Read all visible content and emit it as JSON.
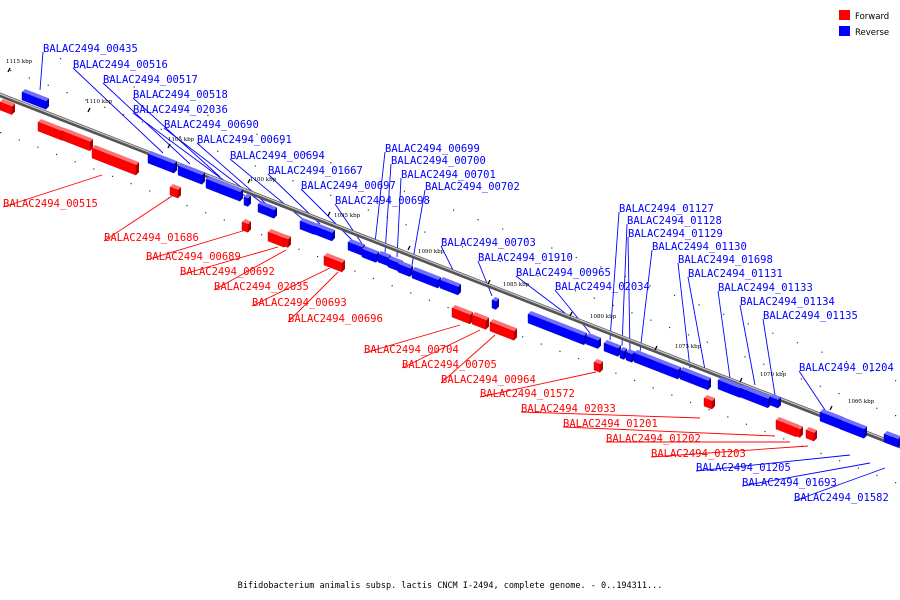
{
  "legend": {
    "forward_label": "Forward",
    "reverse_label": "Reverse",
    "forward_color": "#ff0000",
    "reverse_color": "#0000ff"
  },
  "caption": "Bifidobacterium animalis subsp. lactis CNCM I-2494, complete genome. - 0..194311...",
  "kbp_ticks": [
    "1115 kbp",
    "1110 kbp",
    "1105 kbp",
    "1100 kbp",
    "1095 kbp",
    "1090 kbp",
    "1085 kbp",
    "1080 kbp",
    "1075 kbp",
    "1070 kbp",
    "1065 kbp"
  ],
  "forward_labels": [
    "BALAC2494_00515",
    "BALAC2494_01686",
    "BALAC2494_00689",
    "BALAC2494_00692",
    "BALAC2494_02035",
    "BALAC2494_00693",
    "BALAC2494_00696",
    "BALAC2494_00704",
    "BALAC2494_00705",
    "BALAC2494_00964",
    "BALAC2494_01572",
    "BALAC2494_02033",
    "BALAC2494_01201",
    "BALAC2494_01202",
    "BALAC2494_01203"
  ],
  "reverse_labels": [
    "BALAC2494_00435",
    "BALAC2494_00516",
    "BALAC2494_00517",
    "BALAC2494_00518",
    "BALAC2494_02036",
    "BALAC2494_00690",
    "BALAC2494_00691",
    "BALAC2494_00694",
    "BALAC2494_01667",
    "BALAC2494_00697",
    "BALAC2494_00698",
    "BALAC2494_00699",
    "BALAC2494_00700",
    "BALAC2494_00701",
    "BALAC2494_00702",
    "BALAC2494_00703",
    "BALAC2494_01910",
    "BALAC2494_00965",
    "BALAC2494_02034",
    "BALAC2494_01127",
    "BALAC2494_01128",
    "BALAC2494_01129",
    "BALAC2494_01130",
    "BALAC2494_01698",
    "BALAC2494_01131",
    "BALAC2494_01133",
    "BALAC2494_01134",
    "BALAC2494_01135",
    "BALAC2494_01204",
    "BALAC2494_01205",
    "BALAC2494_01693",
    "BALAC2494_01582"
  ]
}
